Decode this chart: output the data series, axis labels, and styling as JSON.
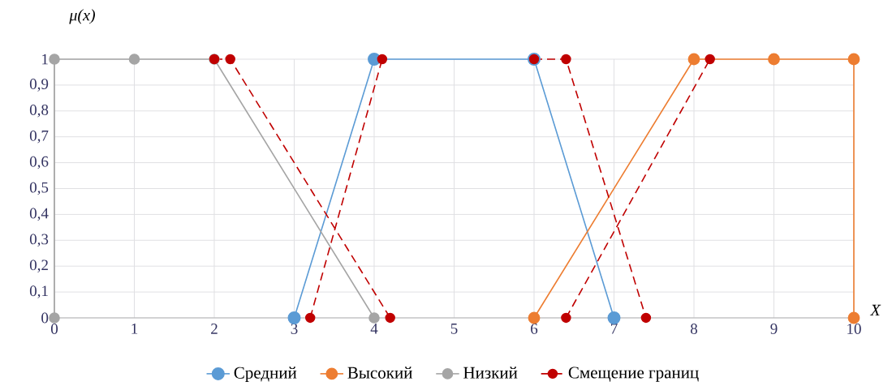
{
  "chart_data": {
    "type": "line",
    "xlabel": "X",
    "ylabel": "μ(x)",
    "xlim": [
      0,
      10
    ],
    "ylim": [
      0,
      1
    ],
    "xticks": [
      0,
      1,
      2,
      3,
      4,
      5,
      6,
      7,
      8,
      9,
      10
    ],
    "yticks": [
      0,
      {
        "value": 0.1,
        "label": "0,1"
      },
      {
        "value": 0.2,
        "label": "0,2"
      },
      {
        "value": 0.3,
        "label": "0,3"
      },
      {
        "value": 0.4,
        "label": "0,4"
      },
      {
        "value": 0.5,
        "label": "0,5"
      },
      {
        "value": 0.6,
        "label": "0,6"
      },
      {
        "value": 0.7,
        "label": "0,7"
      },
      {
        "value": 0.8,
        "label": "0,8"
      },
      {
        "value": 0.9,
        "label": "0,9"
      },
      1
    ],
    "grid": true,
    "legend": "bottom",
    "marker": "circle",
    "series": [
      {
        "name": "Средний",
        "color": "#5b9bd5",
        "line_style": "solid",
        "x": [
          3,
          4,
          6,
          7
        ],
        "values": [
          0,
          1,
          1,
          0
        ]
      },
      {
        "name": "Высокий",
        "color": "#ed7d31",
        "line_style": "solid",
        "x": [
          6,
          8,
          9,
          10,
          10
        ],
        "values": [
          0,
          1,
          1,
          1,
          0
        ]
      },
      {
        "name": "Низкий",
        "color": "#a5a5a5",
        "line_style": "solid",
        "x": [
          0,
          0,
          1,
          2,
          4
        ],
        "values": [
          0,
          1,
          1,
          1,
          0
        ]
      },
      {
        "name": "Смещение границ",
        "color": "#c00000",
        "line_style": "dashed",
        "x": [
          2,
          2.2,
          4.2,
          null,
          3.2,
          4.1,
          null,
          6,
          6.4,
          7.4,
          null,
          6.4,
          8.2
        ],
        "values": [
          1,
          1,
          0,
          null,
          0,
          1,
          null,
          1,
          1,
          0,
          null,
          0,
          1
        ]
      }
    ]
  }
}
